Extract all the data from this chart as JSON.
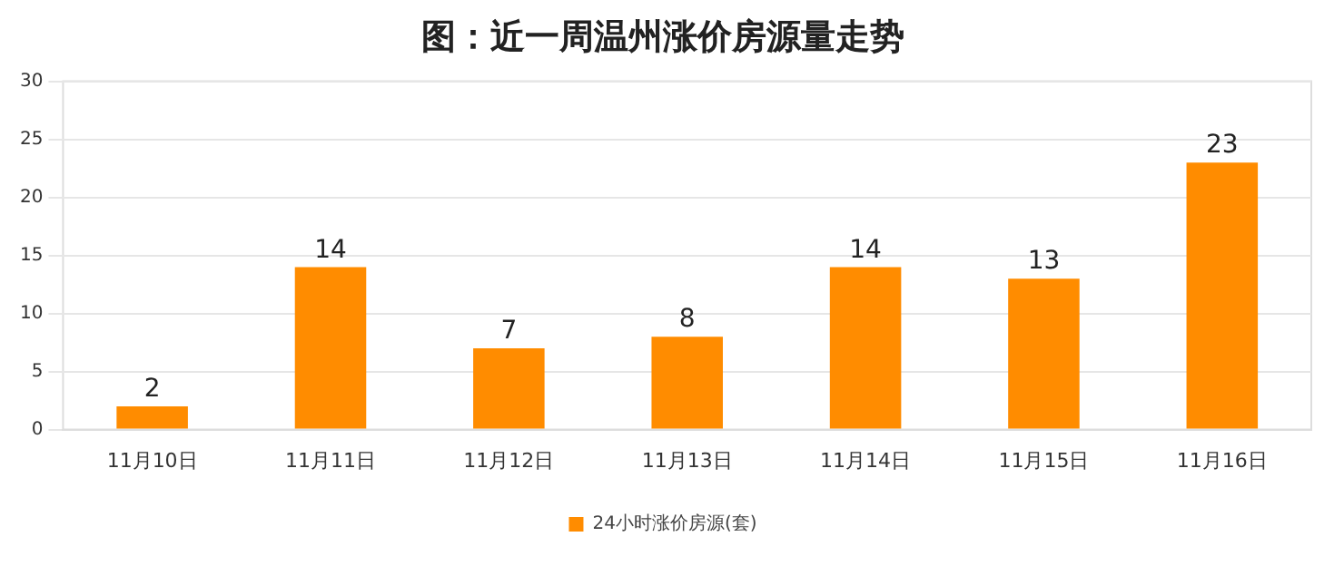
{
  "chart_data": {
    "type": "bar",
    "title": "图：近一周温州涨价房源量走势",
    "categories": [
      "11月10日",
      "11月11日",
      "11月12日",
      "11月13日",
      "11月14日",
      "11月15日",
      "11月16日"
    ],
    "series": [
      {
        "name": "24小时涨价房源(套)",
        "color": "#ff8c00",
        "values": [
          2,
          14,
          7,
          8,
          14,
          13,
          23
        ]
      }
    ],
    "ylim": [
      0,
      30
    ],
    "yticks": [
      0,
      5,
      10,
      15,
      20,
      25,
      30
    ],
    "grid": "y",
    "legend": "bottom",
    "data_labels": true
  }
}
